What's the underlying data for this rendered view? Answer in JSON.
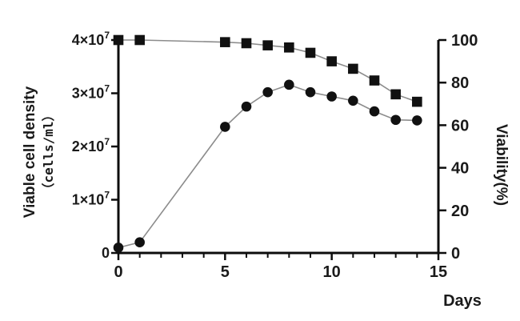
{
  "chart_data": {
    "type": "line",
    "title": "",
    "x_axis": {
      "label": "Days",
      "range": [
        0,
        15
      ],
      "major_ticks": [
        0,
        5,
        10,
        15
      ],
      "minor_step": 1
    },
    "left_axis": {
      "label_line1": "Viable cell density",
      "label_line2": "（cells/ml）",
      "range": [
        0,
        40000000
      ],
      "ticks": [
        {
          "value": 0,
          "label": "0"
        },
        {
          "value": 10000000,
          "label": "1×10^7"
        },
        {
          "value": 20000000,
          "label": "2×10^7"
        },
        {
          "value": 30000000,
          "label": "3×10^7"
        },
        {
          "value": 40000000,
          "label": "4×10^7"
        }
      ]
    },
    "right_axis": {
      "label": "Viability(%)",
      "range": [
        0,
        100
      ],
      "ticks": [
        0,
        20,
        40,
        60,
        80,
        100
      ]
    },
    "days": [
      0,
      1,
      5,
      6,
      7,
      8,
      9,
      10,
      11,
      12,
      13,
      14
    ],
    "series": [
      {
        "name": "Viable cell density",
        "axis": "left",
        "marker": "circle",
        "values": [
          1000000,
          2000000,
          23700000,
          27500000,
          30200000,
          31600000,
          30200000,
          29400000,
          28600000,
          26600000,
          25000000,
          24900000
        ]
      },
      {
        "name": "Viability",
        "axis": "right",
        "marker": "square",
        "values": [
          100,
          100,
          99,
          98.5,
          97.5,
          96.5,
          94,
          90,
          86.5,
          81,
          74.5,
          71
        ]
      }
    ],
    "legend": "none",
    "grid": false,
    "colors": {
      "marker": "#111111",
      "line": "#8c8c8c",
      "axis": "#0d0d0d",
      "text": "#1a1a1a",
      "background": "#ffffff"
    }
  }
}
